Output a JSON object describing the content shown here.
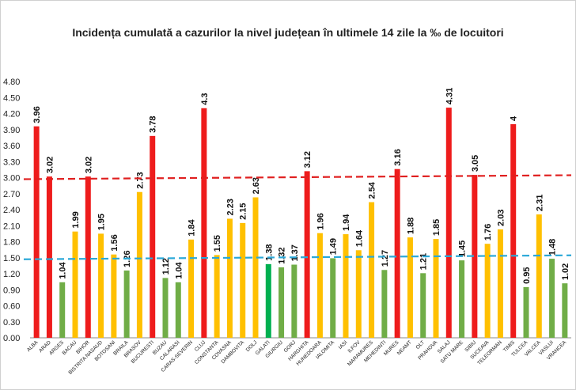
{
  "chart_data": {
    "type": "bar",
    "title": "Incidența cumulată a cazurilor la nivel județean în ultimele 14 zile la ‰ de locuitori",
    "xlabel": "",
    "ylabel": "",
    "ylim": [
      0,
      4.8
    ],
    "y_ticks": [
      "0.00",
      "0.30",
      "0.60",
      "0.90",
      "1.20",
      "1.50",
      "1.80",
      "2.10",
      "2.40",
      "2.70",
      "3.00",
      "3.30",
      "3.60",
      "3.90",
      "4.20",
      "4.50",
      "4.80"
    ],
    "grid": false,
    "categories": [
      "ALBA",
      "ARAD",
      "ARGES",
      "BACAU",
      "BIHOR",
      "BISTRITA NASAUD",
      "BOTOSANI",
      "BRAILA",
      "BRASOV",
      "BUCURESTI",
      "BUZAU",
      "CALARASI",
      "CARAS-SEVERIN",
      "CLUJ",
      "CONSTANTA",
      "COVASNA",
      "DAMBOVITA",
      "DOLJ",
      "GALATI",
      "GIURGIU",
      "GORJ",
      "HARGHITA",
      "HUNEDOARA",
      "IALOMITA",
      "IASI",
      "ILFOV",
      "MARAMURES",
      "MEHEDINTI",
      "MURES",
      "NEAMT",
      "OLT",
      "PRAHOVA",
      "SALAJ",
      "SATU MARE",
      "SIBIU",
      "SUCEAVA",
      "TELEORMAN",
      "TIMIS",
      "TULCEA",
      "VALCEA",
      "VASLUI",
      "VRANCEA"
    ],
    "values": [
      3.96,
      3.02,
      1.04,
      1.99,
      3.02,
      1.95,
      1.56,
      1.26,
      2.73,
      3.78,
      1.12,
      1.04,
      1.84,
      4.3,
      1.55,
      2.23,
      2.15,
      2.63,
      1.38,
      1.32,
      1.37,
      3.12,
      1.96,
      1.49,
      1.94,
      1.64,
      2.54,
      1.27,
      3.16,
      1.88,
      1.21,
      1.85,
      4.31,
      1.45,
      3.05,
      1.76,
      2.03,
      4,
      0.95,
      2.31,
      1.48,
      1.02
    ],
    "value_labels": [
      "3.96",
      "3.02",
      "1.04",
      "1.99",
      "3.02",
      "1.95",
      "1.56",
      "1.26",
      "2.73",
      "3.78",
      "1.12",
      "1.04",
      "1.84",
      "4.3",
      "1.55",
      "2.23",
      "2.15",
      "2.63",
      "1.38",
      "1.32",
      "1.37",
      "3.12",
      "1.96",
      "1.49",
      "1.94",
      "1.64",
      "2.54",
      "1.27",
      "3.16",
      "1.88",
      "1.21",
      "1.85",
      "4.31",
      "1.45",
      "3.05",
      "1.76",
      "2.03",
      "4",
      "0.95",
      "2.31",
      "1.48",
      "1.02"
    ],
    "thresholds": [
      {
        "value": 3.0,
        "color": "#e02020"
      },
      {
        "value": 1.5,
        "color": "#2aa8d8"
      }
    ],
    "colors": {
      "high": "#ee1c1c",
      "medium": "#ffc000",
      "low": "#70ad47",
      "highlight": "#00b050"
    },
    "highlight_category": "GALATI"
  }
}
